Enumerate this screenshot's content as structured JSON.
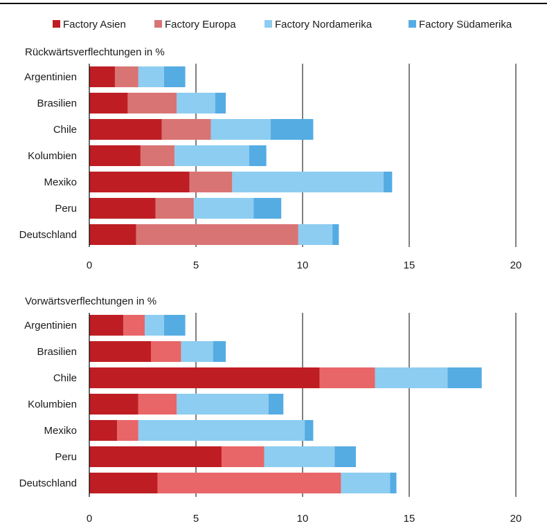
{
  "colors": {
    "factory_asien": "#be1e23",
    "factory_europa_top": "#d97474",
    "factory_europa_bottom": "#e86668",
    "factory_nordamerika": "#8dcdf1",
    "factory_suedamerika": "#55ace3",
    "gridline": "#000000",
    "topline": "#000000"
  },
  "legend": {
    "placement": "top",
    "items": [
      {
        "label": "Factory Asien",
        "key": "factory_asien"
      },
      {
        "label": "Factory Europa",
        "key": "factory_europa"
      },
      {
        "label": "Factory Nordamerika",
        "key": "factory_nordamerika"
      },
      {
        "label": "Factory Südamerika",
        "key": "factory_suedamerika"
      }
    ]
  },
  "chart_data": [
    {
      "type": "bar",
      "orientation": "horizontal",
      "stacked": true,
      "title": "Rückwärtsverflechtungen in %",
      "categories": [
        "Argentinien",
        "Brasilien",
        "Chile",
        "Kolumbien",
        "Mexiko",
        "Peru",
        "Deutschland"
      ],
      "series": [
        {
          "name": "Factory Asien",
          "values": [
            1.2,
            1.8,
            3.4,
            2.4,
            4.7,
            3.1,
            2.2
          ]
        },
        {
          "name": "Factory Europa",
          "values": [
            1.1,
            2.3,
            2.3,
            1.6,
            2.0,
            1.8,
            7.6
          ]
        },
        {
          "name": "Factory Nordamerika",
          "values": [
            1.2,
            1.8,
            2.8,
            3.5,
            7.1,
            2.8,
            1.6
          ]
        },
        {
          "name": "Factory Südamerika",
          "values": [
            1.0,
            0.5,
            2.0,
            0.8,
            0.4,
            1.3,
            0.3
          ]
        }
      ],
      "xlim": [
        0,
        20
      ],
      "xticks": [
        "0",
        "5",
        "10",
        "15",
        "20"
      ],
      "grid": true
    },
    {
      "type": "bar",
      "orientation": "horizontal",
      "stacked": true,
      "title": "Vorwärtsverflechtungen in %",
      "categories": [
        "Argentinien",
        "Brasilien",
        "Chile",
        "Kolumbien",
        "Mexiko",
        "Peru",
        "Deutschland"
      ],
      "series": [
        {
          "name": "Factory Asien",
          "values": [
            1.6,
            2.9,
            10.8,
            2.3,
            1.3,
            6.2,
            3.2
          ]
        },
        {
          "name": "Factory Europa",
          "values": [
            1.0,
            1.4,
            2.6,
            1.8,
            1.0,
            2.0,
            8.6
          ]
        },
        {
          "name": "Factory Nordamerika",
          "values": [
            0.9,
            1.5,
            3.4,
            4.3,
            7.8,
            3.3,
            2.3
          ]
        },
        {
          "name": "Factory Südamerika",
          "values": [
            1.0,
            0.6,
            1.6,
            0.7,
            0.4,
            1.0,
            0.3
          ]
        }
      ],
      "xlim": [
        0,
        20
      ],
      "xticks": [
        "0",
        "5",
        "10",
        "15",
        "20"
      ],
      "grid": true
    }
  ]
}
